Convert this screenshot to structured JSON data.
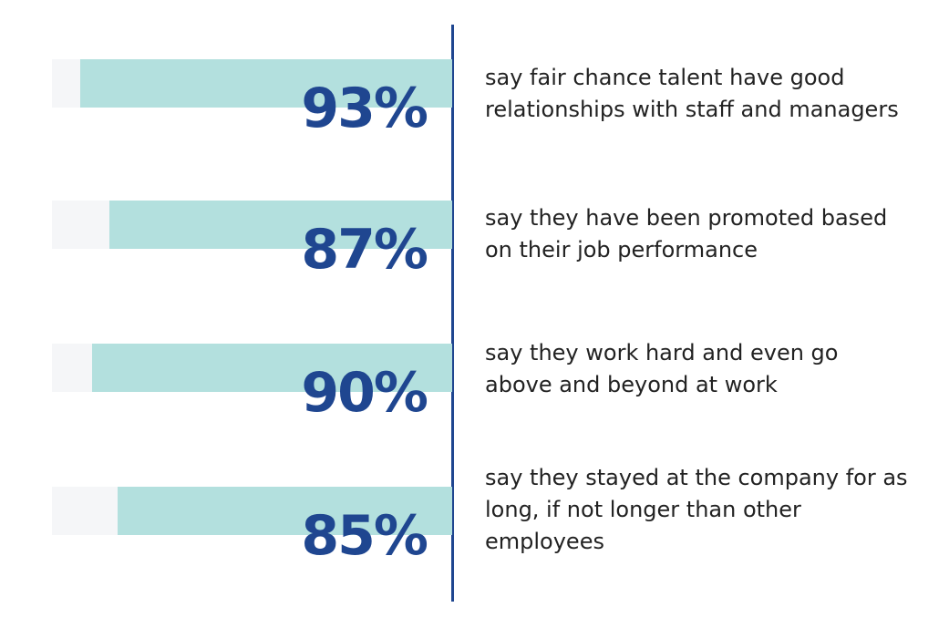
{
  "chart_data": {
    "type": "bar",
    "orientation": "horizontal",
    "xlim": [
      0,
      100
    ],
    "colors": {
      "fill": "#b3e0de",
      "track": "#f5f6f8",
      "label": "#1f4690",
      "axis": "#1f4690"
    },
    "items": [
      {
        "value": 93,
        "label": "93%",
        "description": "say fair chance talent have good relationships with staff and managers"
      },
      {
        "value": 87,
        "label": "87%",
        "description": "say they have been promoted based on their job performance"
      },
      {
        "value": 90,
        "label": "90%",
        "description": "say they work hard and even go above and beyond at work"
      },
      {
        "value": 85,
        "label": "85%",
        "description": "say they stayed at the company for as long, if not longer than other employees"
      }
    ]
  }
}
